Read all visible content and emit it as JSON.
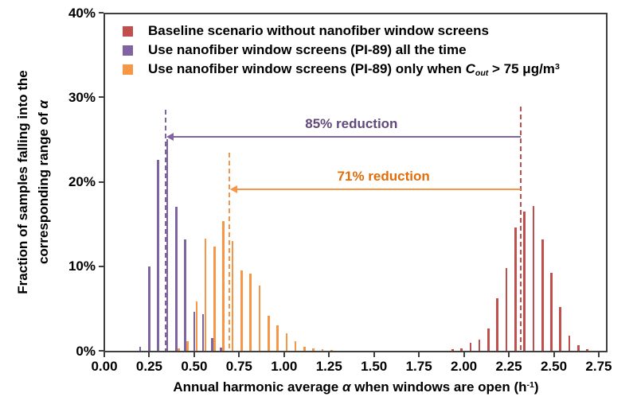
{
  "chart_data": {
    "type": "bar",
    "title": "",
    "grid": false,
    "legend_position": "top-left-inside",
    "xlim": [
      0.0,
      2.8
    ],
    "ylim_pct": [
      0,
      40
    ],
    "bin_width": 0.05,
    "x_tick_labels": [
      "0.00",
      "0.25",
      "0.50",
      "0.75",
      "1.00",
      "1.25",
      "1.50",
      "1.75",
      "2.00",
      "2.25",
      "2.50",
      "2.75"
    ],
    "y_ticks": [
      {
        "pct": 0,
        "label": "0%"
      },
      {
        "pct": 10,
        "label": "10%"
      },
      {
        "pct": 20,
        "label": "20%"
      },
      {
        "pct": 30,
        "label": "30%"
      },
      {
        "pct": 40,
        "label": "40%"
      }
    ],
    "xlabel_parts": {
      "pre": "Annual harmonic average ",
      "alpha": "α",
      "mid": " when windows are open (h",
      "sup": "-1",
      "post": ")"
    },
    "ylabel_parts": {
      "line1": "Fraction of samples falling into the",
      "line2_pre": "corresponding range of ",
      "alpha": "α"
    },
    "series": [
      {
        "name": "Baseline scenario without nanofiber window screens",
        "color": "#C0504D",
        "bins": [
          1.95,
          2.0,
          2.05,
          2.1,
          2.15,
          2.2,
          2.25,
          2.3,
          2.35,
          2.4,
          2.45,
          2.5,
          2.55,
          2.6,
          2.65,
          2.7
        ],
        "values_pct": [
          0.2,
          0.3,
          0.9,
          1.3,
          2.6,
          6.2,
          9.8,
          14.6,
          16.5,
          17.1,
          13.2,
          9.2,
          5.2,
          1.8,
          0.7,
          0.2
        ]
      },
      {
        "name": "Use nanofiber window screens (PI-89) all the time",
        "color": "#8064A2",
        "bins": [
          0.2,
          0.25,
          0.3,
          0.35,
          0.4,
          0.45,
          0.5,
          0.55,
          0.6,
          0.65
        ],
        "values_pct": [
          0.5,
          10.0,
          22.6,
          25.0,
          17.0,
          13.2,
          4.6,
          4.3,
          1.5,
          0.4
        ]
      },
      {
        "name": "Use nanofiber window screens (PI-89) only when Cout > 75 μg/m3",
        "color": "#F79646",
        "bins": [
          0.4,
          0.45,
          0.5,
          0.55,
          0.6,
          0.65,
          0.7,
          0.75,
          0.8,
          0.85,
          0.9,
          0.95,
          1.0,
          1.05,
          1.1,
          1.15,
          1.2,
          1.25
        ],
        "values_pct": [
          0.3,
          1.1,
          5.8,
          13.3,
          12.3,
          15.3,
          13.0,
          9.5,
          9.1,
          7.7,
          4.1,
          3.0,
          2.1,
          1.1,
          0.5,
          0.3,
          0.2,
          0.1
        ]
      }
    ],
    "annotations": {
      "dashed_lines": [
        {
          "x": 2.316,
          "top_pct": 28.9,
          "color": "#C0504D"
        },
        {
          "x": 0.34,
          "top_pct": 28.5,
          "color": "#8064A2"
        },
        {
          "x": 0.697,
          "top_pct": 23.4,
          "color": "#F79646"
        }
      ],
      "arrows": [
        {
          "label": "85% reduction",
          "from_x": 2.316,
          "to_x": 0.34,
          "y_pct": 25.3,
          "line_color": "#8064A2",
          "text_color": "#604A7B"
        },
        {
          "label": "71% reduction",
          "from_x": 2.316,
          "to_x": 0.697,
          "y_pct": 19.15,
          "line_color": "#F79646",
          "text_color": "#E36C09"
        }
      ]
    }
  },
  "legend": {
    "items": [
      {
        "label": "Baseline scenario without nanofiber window screens",
        "color": "#C0504D"
      },
      {
        "label": "Use nanofiber window screens (PI-89) all the time",
        "color": "#8064A2"
      },
      {
        "color": "#F79646",
        "parts": {
          "pre": "Use nanofiber window screens (PI-89) only when ",
          "var": "C",
          "sub": "out",
          "mid": " > 75 μg/m",
          "sup": "3"
        }
      }
    ]
  }
}
